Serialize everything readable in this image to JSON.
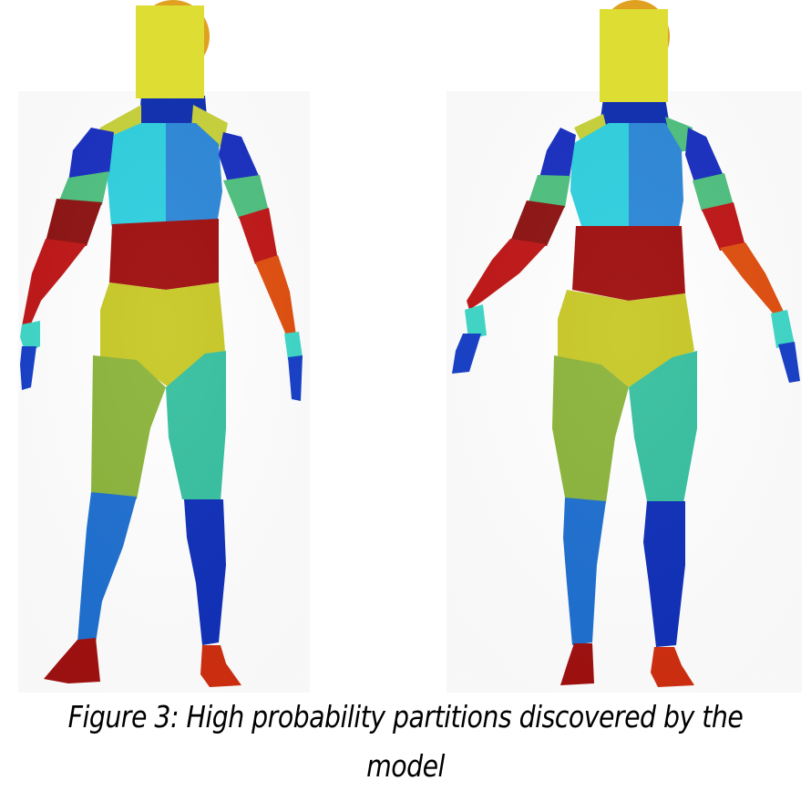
{
  "caption": "Figure 3: High probability partitions discovered by the model",
  "figures": [
    {
      "id": "figure-left"
    },
    {
      "id": "figure-right"
    }
  ],
  "colors": {
    "yellow_box": "#DDDD33",
    "head": "#E0A020",
    "neck": "#1030B0",
    "shoulder_yellow": "#C8D23A",
    "chest_cyan": "#30D0E0",
    "chest_blue": "#2E88D8",
    "upper_arm_blue": "#1A30C0",
    "elbow_green": "#50C080",
    "forearm_red": "#C01818",
    "forearm_darkred": "#8E1414",
    "forearm_orange": "#E05010",
    "hand_cyan": "#40D8C8",
    "hand_blue": "#1840C8",
    "waist_darkred": "#A01010",
    "hips_yellow": "#C8C828",
    "thigh_green_left": "#8CB43C",
    "thigh_teal_right": "#38C0A0",
    "shin_blue_left": "#1F70D0",
    "shin_navy_right": "#1030B8",
    "foot_darkred": "#A01010",
    "foot_red": "#D02E10"
  }
}
